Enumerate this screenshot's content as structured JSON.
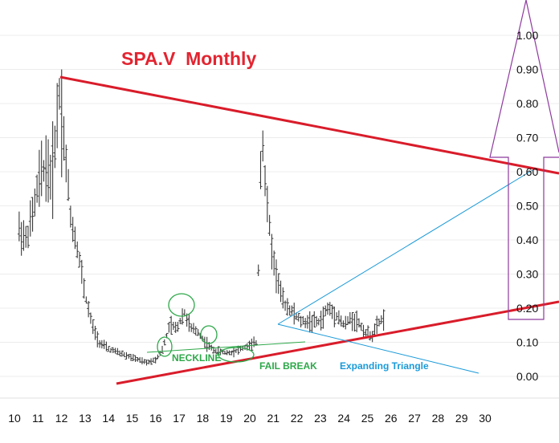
{
  "chart_data": {
    "type": "candlestick",
    "title": "SPA.V  Monthly",
    "grid": true,
    "colors": {
      "title": "#e32430",
      "trendline": "#d91c2a",
      "triangle": "#1a9ad8",
      "neckline": "#2ea84a",
      "arrow": "#8e3a9e",
      "bars": "#3a3a3a"
    },
    "x_ticks": [
      "10",
      "11",
      "12",
      "13",
      "14",
      "15",
      "16",
      "17",
      "18",
      "19",
      "20",
      "21",
      "22",
      "23",
      "24",
      "25",
      "26",
      "27",
      "28",
      "29",
      "30"
    ],
    "y_ticks": [
      "1.00",
      "0.90",
      "0.80",
      "0.70",
      "0.60",
      "0.50",
      "0.40",
      "0.30",
      "0.20",
      "0.10",
      "0.00"
    ],
    "xlim": [
      10,
      30.9
    ],
    "ylim": [
      0,
      1.0
    ],
    "series": [
      {
        "values": [
          [
            10.2,
            0.43
          ],
          [
            10.5,
            0.4
          ],
          [
            10.8,
            0.48
          ],
          [
            11.0,
            0.56
          ],
          [
            11.3,
            0.62
          ],
          [
            11.6,
            0.58
          ],
          [
            11.9,
            0.84
          ],
          [
            12.1,
            0.7
          ],
          [
            12.4,
            0.46
          ],
          [
            12.7,
            0.37
          ],
          [
            13.0,
            0.24
          ],
          [
            13.3,
            0.15
          ],
          [
            13.6,
            0.1
          ],
          [
            14.0,
            0.08
          ],
          [
            14.4,
            0.07
          ],
          [
            14.8,
            0.06
          ],
          [
            15.2,
            0.05
          ],
          [
            15.6,
            0.04
          ],
          [
            16.0,
            0.05
          ],
          [
            16.3,
            0.08
          ],
          [
            16.6,
            0.15
          ],
          [
            16.9,
            0.14
          ],
          [
            17.2,
            0.19
          ],
          [
            17.5,
            0.14
          ],
          [
            17.8,
            0.13
          ],
          [
            18.1,
            0.1
          ],
          [
            18.4,
            0.08
          ],
          [
            18.8,
            0.07
          ],
          [
            19.2,
            0.07
          ],
          [
            19.6,
            0.08
          ],
          [
            20.0,
            0.09
          ],
          [
            20.3,
            0.1
          ],
          [
            20.5,
            0.75
          ],
          [
            20.7,
            0.52
          ],
          [
            21.0,
            0.34
          ],
          [
            21.4,
            0.22
          ],
          [
            21.8,
            0.19
          ],
          [
            22.2,
            0.16
          ],
          [
            22.6,
            0.16
          ],
          [
            23.0,
            0.16
          ],
          [
            23.3,
            0.2
          ],
          [
            23.7,
            0.18
          ],
          [
            24.0,
            0.15
          ],
          [
            24.3,
            0.17
          ],
          [
            24.6,
            0.16
          ],
          [
            24.9,
            0.13
          ],
          [
            25.2,
            0.12
          ],
          [
            25.5,
            0.16
          ],
          [
            25.7,
            0.17
          ]
        ]
      }
    ],
    "annotations": [
      "NECKLINE",
      "FAIL BREAK",
      "Expanding Triangle"
    ]
  }
}
